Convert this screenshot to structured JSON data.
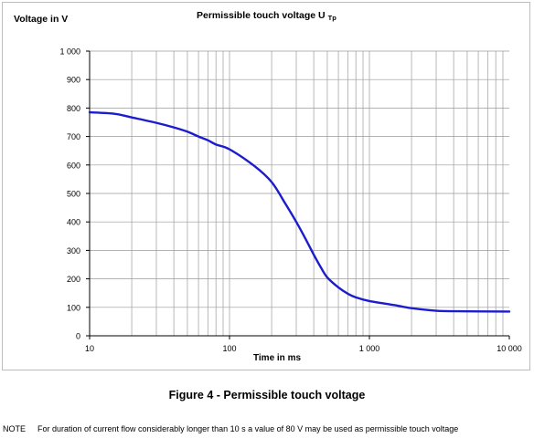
{
  "figure_caption": "Figure 4 - Permissible touch voltage",
  "note": {
    "label": "NOTE",
    "text": "For duration of current flow considerably longer than 10 s a value of 80 V may be used as permissible touch voltage"
  },
  "colors": {
    "line": "#1c1ccf",
    "grid": "#9a9a9a"
  },
  "chart_data": {
    "type": "line",
    "title": "Permissible touch voltage U",
    "title_subscript": "Tp",
    "xlabel": "Time in ms",
    "ylabel": "Voltage in V",
    "x_scale": "log",
    "xlim": [
      10,
      10000
    ],
    "ylim": [
      0,
      1000
    ],
    "grid": true,
    "x_tick_labels": [
      {
        "v": 10,
        "label": "10"
      },
      {
        "v": 100,
        "label": "100"
      },
      {
        "v": 1000,
        "label": "1 000"
      },
      {
        "v": 10000,
        "label": "10 000"
      }
    ],
    "y_tick_labels": [
      {
        "v": 0,
        "label": "0"
      },
      {
        "v": 100,
        "label": "100"
      },
      {
        "v": 200,
        "label": "200"
      },
      {
        "v": 300,
        "label": "300"
      },
      {
        "v": 400,
        "label": "400"
      },
      {
        "v": 500,
        "label": "500"
      },
      {
        "v": 600,
        "label": "600"
      },
      {
        "v": 700,
        "label": "700"
      },
      {
        "v": 800,
        "label": "800"
      },
      {
        "v": 900,
        "label": "900"
      },
      {
        "v": 1000,
        "label": "1 000"
      }
    ],
    "series": [
      {
        "x": [
          10,
          15,
          20,
          30,
          40,
          50,
          60,
          70,
          80,
          100,
          150,
          200,
          250,
          300,
          350,
          400,
          450,
          500,
          600,
          700,
          800,
          1000,
          1500,
          2000,
          3000,
          5000,
          10000
        ],
        "y": [
          785,
          780,
          767,
          748,
          732,
          717,
          700,
          687,
          672,
          655,
          597,
          540,
          465,
          400,
          340,
          285,
          240,
          205,
          170,
          148,
          135,
          122,
          108,
          97,
          88,
          86,
          85
        ]
      }
    ]
  }
}
